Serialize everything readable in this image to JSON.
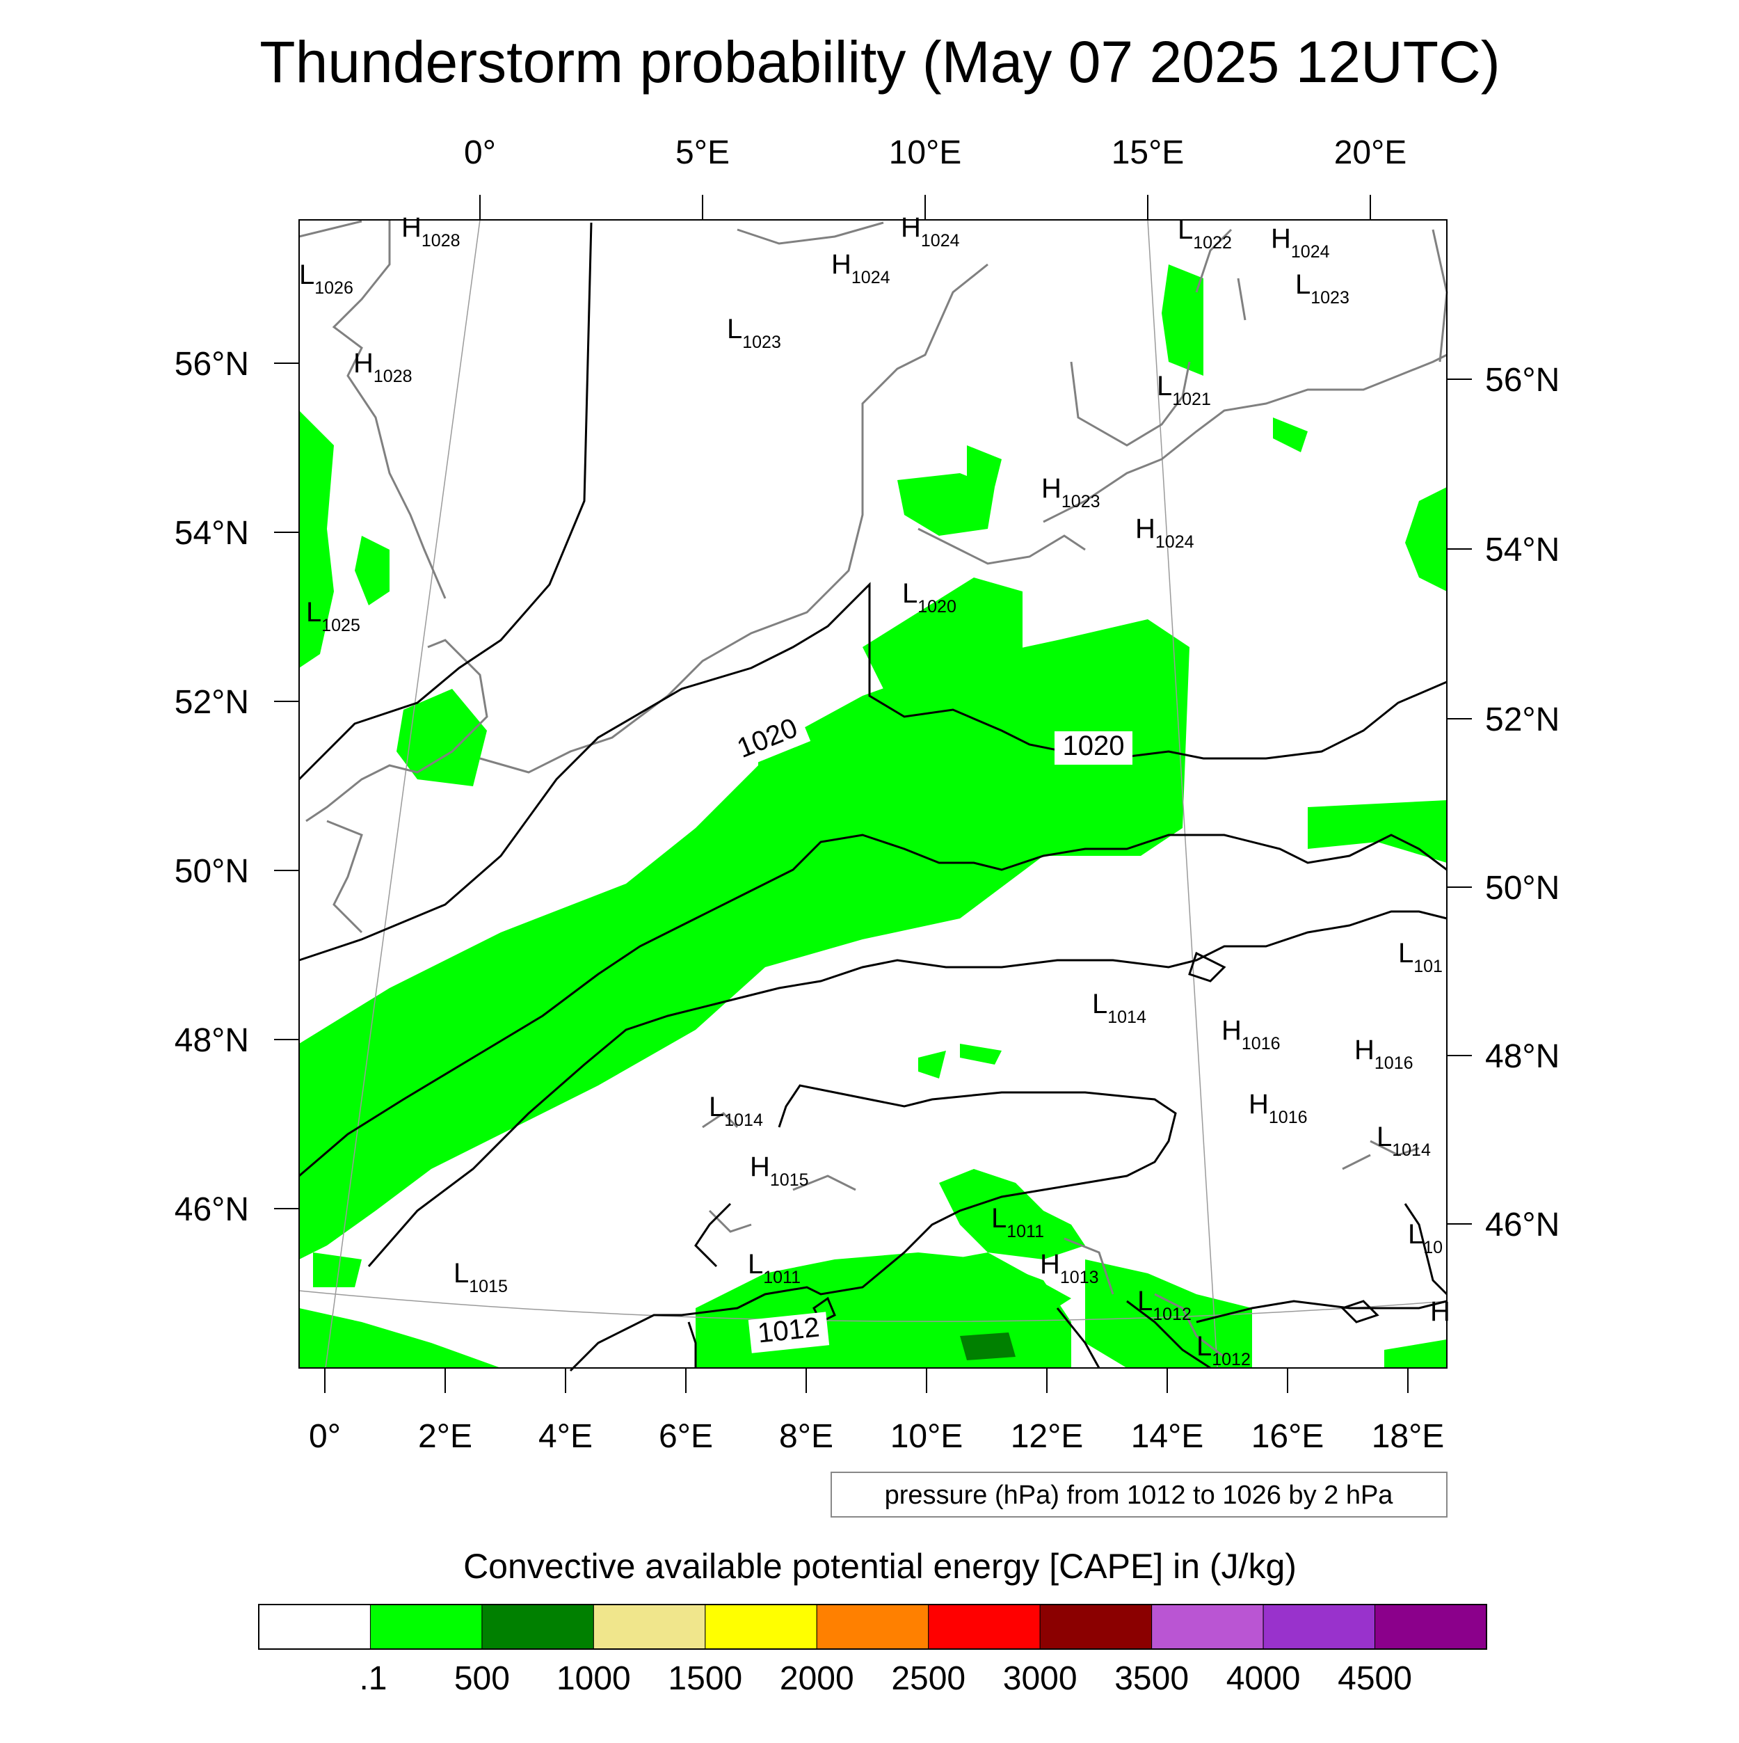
{
  "title": "Thunderstorm probability (May 07 2025 12UTC)",
  "top_lon_ticks": [
    "0°",
    "5°E",
    "10°E",
    "15°E",
    "20°E"
  ],
  "bottom_lon_ticks": [
    "0°",
    "2°E",
    "4°E",
    "6°E",
    "8°E",
    "10°E",
    "12°E",
    "14°E",
    "16°E",
    "18°E"
  ],
  "left_lat_ticks": [
    "56°N",
    "54°N",
    "52°N",
    "50°N",
    "48°N",
    "46°N"
  ],
  "right_lat_ticks": [
    "56°N",
    "54°N",
    "52°N",
    "50°N",
    "48°N",
    "46°N"
  ],
  "pressure_centers": [
    {
      "type": "H",
      "value": "1028"
    },
    {
      "type": "L",
      "value": "1026"
    },
    {
      "type": "H",
      "value": "1028"
    },
    {
      "type": "L",
      "value": "1025"
    },
    {
      "type": "H",
      "value": "1024"
    },
    {
      "type": "H",
      "value": "1024"
    },
    {
      "type": "L",
      "value": "1023"
    },
    {
      "type": "L",
      "value": "1022"
    },
    {
      "type": "H",
      "value": "1024"
    },
    {
      "type": "L",
      "value": "1023"
    },
    {
      "type": "L",
      "value": "1021"
    },
    {
      "type": "H",
      "value": "1023"
    },
    {
      "type": "H",
      "value": "1024"
    },
    {
      "type": "L",
      "value": "1020"
    },
    {
      "type": "L",
      "value": "1014"
    },
    {
      "type": "H",
      "value": "1016"
    },
    {
      "type": "H",
      "value": "1016"
    },
    {
      "type": "H",
      "value": "1016"
    },
    {
      "type": "L",
      "value": "101"
    },
    {
      "type": "L",
      "value": "1014"
    },
    {
      "type": "L",
      "value": "1014"
    },
    {
      "type": "H",
      "value": "1015"
    },
    {
      "type": "L",
      "value": "1011"
    },
    {
      "type": "L",
      "value": "1011"
    },
    {
      "type": "H",
      "value": "1013"
    },
    {
      "type": "L",
      "value": "1015"
    },
    {
      "type": "L",
      "value": "1012"
    },
    {
      "type": "L",
      "value": "1012"
    },
    {
      "type": "L",
      "value": "10"
    },
    {
      "type": "H",
      "value": ""
    }
  ],
  "contour_labels": [
    "1020",
    "1020",
    "1012"
  ],
  "note": "pressure (hPa) from 1012 to 1026 by 2 hPa",
  "colorbar": {
    "title": "Convective available potential energy [CAPE] in (J/kg)",
    "colors": [
      "#ffffff",
      "#00ff00",
      "#008000",
      "#f0e68c",
      "#ffff00",
      "#ff8000",
      "#ff0000",
      "#8b0000",
      "#ba55d3",
      "#9932cc",
      "#8b008b"
    ],
    "labels": [
      ".1",
      "500",
      "1000",
      "1500",
      "2000",
      "2500",
      "3000",
      "3500",
      "4000",
      "4500"
    ]
  }
}
